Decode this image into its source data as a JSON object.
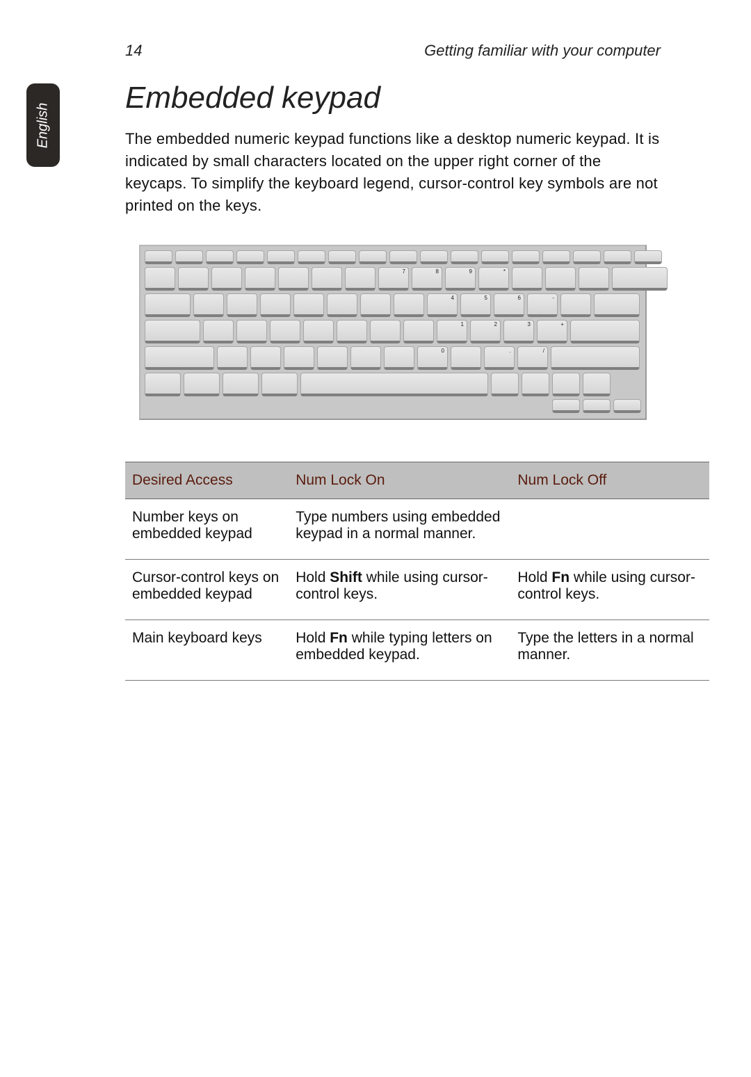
{
  "side_tab": {
    "label": "English",
    "bg_color": "#2b2825",
    "text_color": "#ffffff"
  },
  "header": {
    "page_number": "14",
    "running_head": "Getting familiar with  your computer"
  },
  "heading": "Embedded keypad",
  "paragraph": "The embedded numeric keypad functions like a desktop numeric keypad. It is indicated by small characters located on the upper right corner of the keycaps. To simplify the keyboard legend, cursor-control key symbols are not printed on the keys.",
  "keyboard": {
    "bg_color": "#c8c8c8",
    "key_color": "#e0e0e0",
    "row1_keys": 17,
    "rows": [
      {
        "widths": [
          40,
          40,
          40,
          40,
          40,
          40,
          40,
          40,
          40,
          40,
          40,
          40,
          40,
          40,
          40,
          40,
          40
        ],
        "labels": [
          "",
          "",
          "",
          "",
          "",
          "",
          "",
          "",
          "",
          "",
          "",
          "",
          "",
          "",
          "",
          "",
          ""
        ]
      },
      {
        "widths": [
          44,
          44,
          44,
          44,
          44,
          44,
          44,
          44,
          44,
          44,
          44,
          44,
          44,
          44,
          80
        ],
        "labels": [
          "",
          "",
          "",
          "",
          "",
          "",
          "",
          "7",
          "8",
          "9",
          "*",
          "",
          "",
          "",
          ""
        ]
      },
      {
        "widths": [
          66,
          44,
          44,
          44,
          44,
          44,
          44,
          44,
          44,
          44,
          44,
          44,
          44,
          66
        ],
        "labels": [
          "",
          "",
          "",
          "",
          "",
          "",
          "",
          "",
          "4",
          "5",
          "6",
          "-",
          "",
          ""
        ]
      },
      {
        "widths": [
          80,
          44,
          44,
          44,
          44,
          44,
          44,
          44,
          44,
          44,
          44,
          44,
          100
        ],
        "labels": [
          "",
          "",
          "",
          "",
          "",
          "",
          "",
          "",
          "1",
          "2",
          "3",
          "+",
          ""
        ]
      },
      {
        "widths": [
          100,
          44,
          44,
          44,
          44,
          44,
          44,
          44,
          44,
          44,
          44,
          128
        ],
        "labels": [
          "",
          "",
          "",
          "",
          "",
          "",
          "",
          "0",
          "",
          ".",
          "/",
          ""
        ]
      },
      {
        "widths": [
          52,
          52,
          52,
          52,
          270,
          40,
          40,
          40,
          40
        ],
        "labels": [
          "",
          "",
          "",
          "",
          "",
          "",
          "",
          "",
          ""
        ]
      }
    ],
    "arrow_cluster": {
      "up_width": 40,
      "down_row_widths": [
        40,
        40,
        40
      ]
    }
  },
  "table": {
    "header_bg": "#bfbfbf",
    "header_text_color": "#5a1c0e",
    "columns": [
      "Desired Access",
      "Num Lock On",
      "Num Lock Off"
    ],
    "rows": [
      {
        "c1": "Number keys on embedded keypad",
        "c2": "Type numbers using embedded keypad in a normal manner.",
        "c3": ""
      },
      {
        "c1": "Cursor-control keys on embedded keypad",
        "c2_pre": "Hold ",
        "c2_b": "Shift",
        "c2_post": " while using cursor-control keys.",
        "c3_pre": "Hold ",
        "c3_b": "Fn",
        "c3_post": " while using cursor-control keys."
      },
      {
        "c1": "Main keyboard keys",
        "c2_pre": "Hold ",
        "c2_b": "Fn",
        "c2_post": " while typing letters on embedded keypad.",
        "c3": "Type the letters in a normal manner."
      }
    ]
  }
}
